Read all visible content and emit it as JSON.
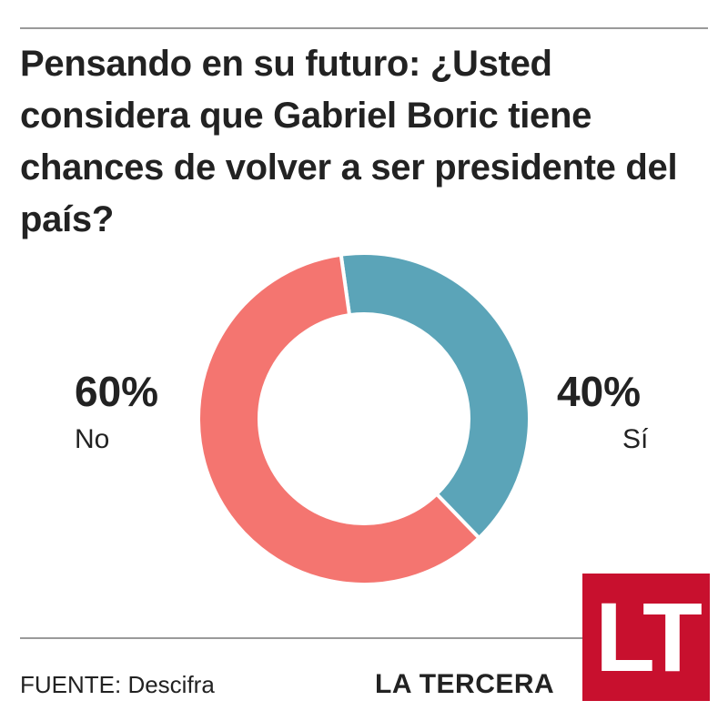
{
  "title": "Pensando en su futuro:  ¿Usted considera que Gabriel Boric tiene chances de volver a ser presidente del país?",
  "source": "FUENTE: Descifra",
  "brand": {
    "name": "LA TERCERA",
    "logo_text": "LT",
    "logo_color": "#c8102e"
  },
  "chart_data": {
    "type": "pie",
    "categories": [
      "Sí",
      "No"
    ],
    "values": [
      40,
      60
    ],
    "value_labels": [
      "40%",
      "60%"
    ],
    "colors": [
      "#5ba4b8",
      "#f47570"
    ],
    "hole": "donut"
  }
}
